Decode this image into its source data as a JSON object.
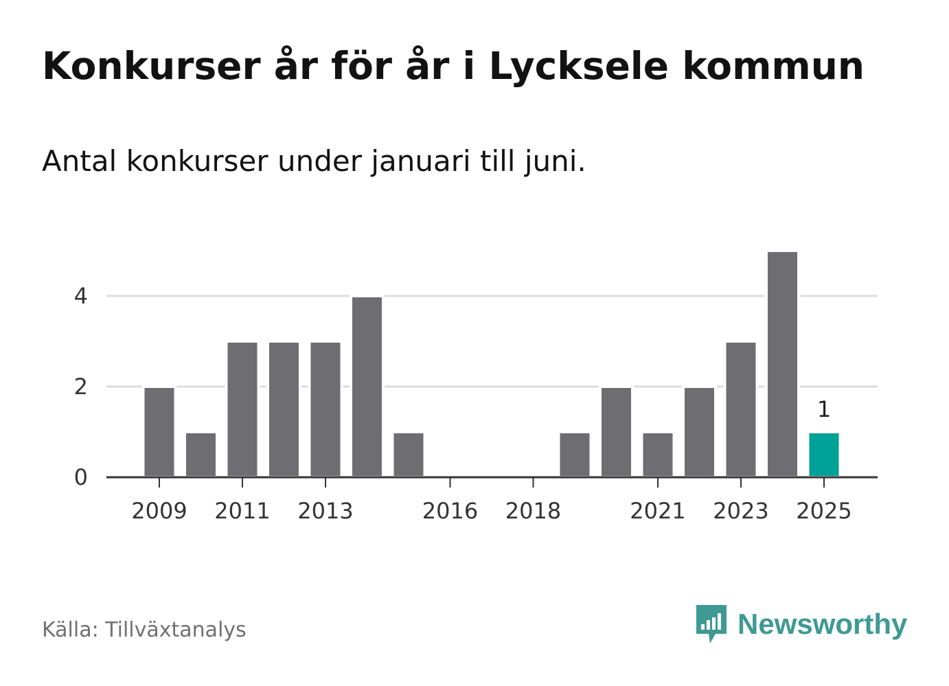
{
  "title": "Konkurser år för år i Lycksele kommun",
  "subtitle": "Antal konkurser under januari till juni.",
  "source": "Källa: Tillväxtanalys",
  "brand": {
    "name": "Newsworthy",
    "icon": "newsworthy-logo-icon",
    "color": "#3e9a93"
  },
  "chart_data": {
    "type": "bar",
    "categories": [
      "2009",
      "2010",
      "2011",
      "2012",
      "2013",
      "2014",
      "2015",
      "2016",
      "2017",
      "2018",
      "2019",
      "2020",
      "2021",
      "2022",
      "2023",
      "2024",
      "2025"
    ],
    "values": [
      2,
      1,
      3,
      3,
      3,
      4,
      1,
      0,
      0,
      0,
      1,
      2,
      1,
      2,
      3,
      5,
      1
    ],
    "x_tick_labels": [
      "2009",
      "2011",
      "2013",
      "2016",
      "2018",
      "2021",
      "2023",
      "2025"
    ],
    "y_ticks": [
      0,
      2,
      4
    ],
    "ylim": [
      0,
      5
    ],
    "grid": true,
    "bar_color": "#6e6d72",
    "highlight": {
      "category": "2025",
      "color": "#00a196",
      "label": "1"
    }
  }
}
